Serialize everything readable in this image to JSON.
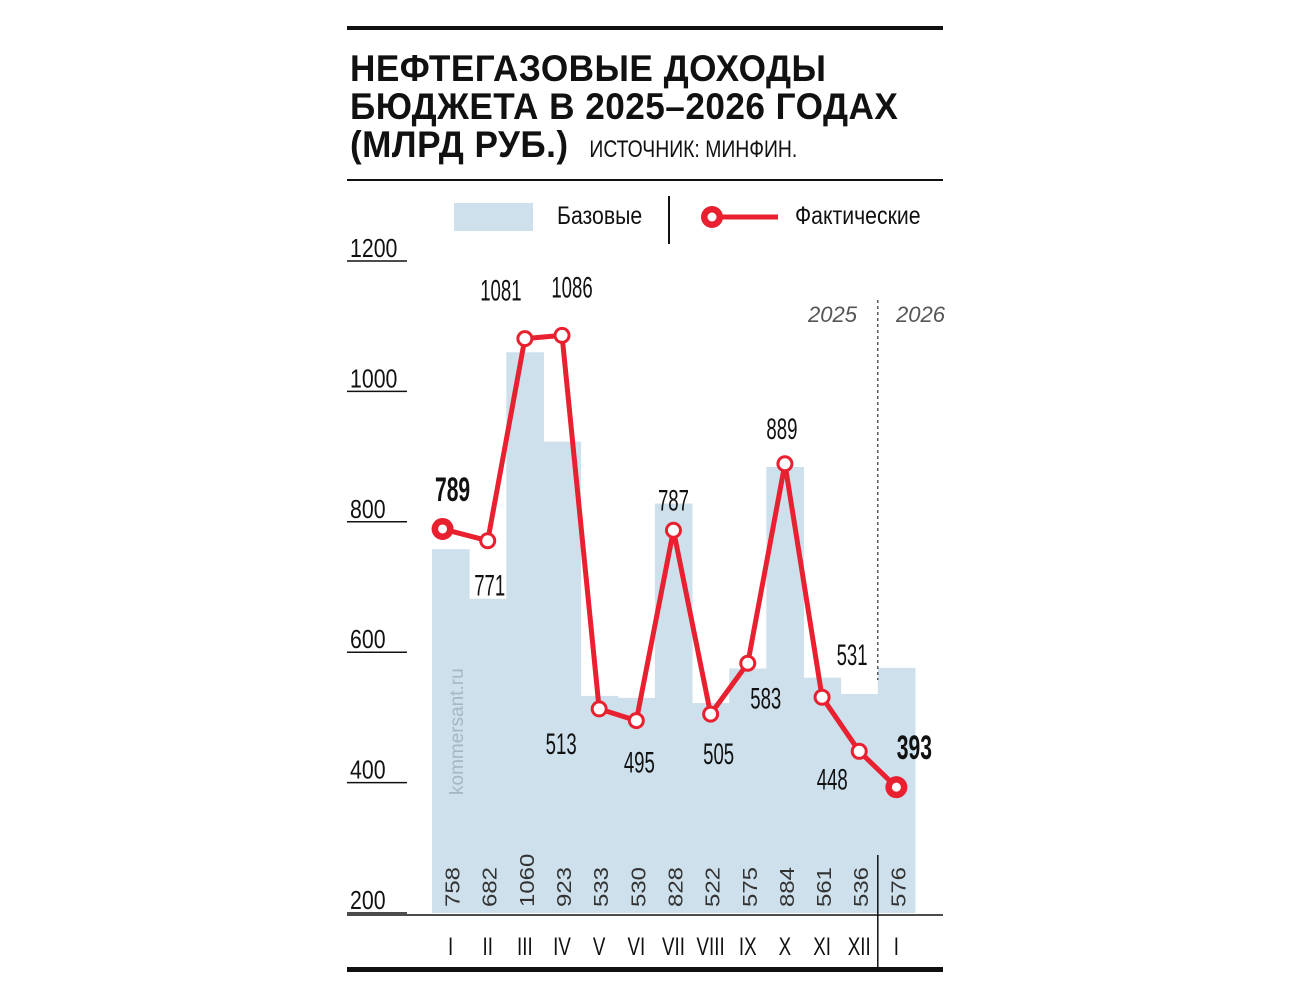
{
  "title": {
    "line1": "НЕФТЕГАЗОВЫЕ ДОХОДЫ",
    "line2": "БЮДЖЕТА В 2025–2026 ГОДАХ",
    "line3": "(МЛРД РУБ.)",
    "source": "ИСТОЧНИК: МИНФИН."
  },
  "watermark": "kommersant.ru",
  "chart_data": {
    "type": "bar+line",
    "title": "Нефтегазовые доходы бюджета в 2025–2026 годах (млрд руб.)",
    "categories": [
      "I",
      "II",
      "III",
      "IV",
      "V",
      "VI",
      "VII",
      "VIII",
      "IX",
      "X",
      "XI",
      "XII",
      "I"
    ],
    "year_labels": [
      "2025",
      "2026"
    ],
    "series": [
      {
        "name": "Базовые",
        "type": "bar",
        "color": "#cde0ec",
        "values": [
          758,
          682,
          1060,
          923,
          533,
          530,
          828,
          522,
          575,
          884,
          561,
          536,
          576
        ]
      },
      {
        "name": "Фактические",
        "type": "line",
        "color": "#e8202f",
        "values": [
          789,
          771,
          1081,
          1086,
          513,
          495,
          787,
          505,
          583,
          889,
          531,
          448,
          393
        ]
      }
    ],
    "yticks": [
      200,
      400,
      600,
      800,
      1000,
      1200
    ],
    "ylim": [
      200,
      1200
    ],
    "legend": "top"
  }
}
